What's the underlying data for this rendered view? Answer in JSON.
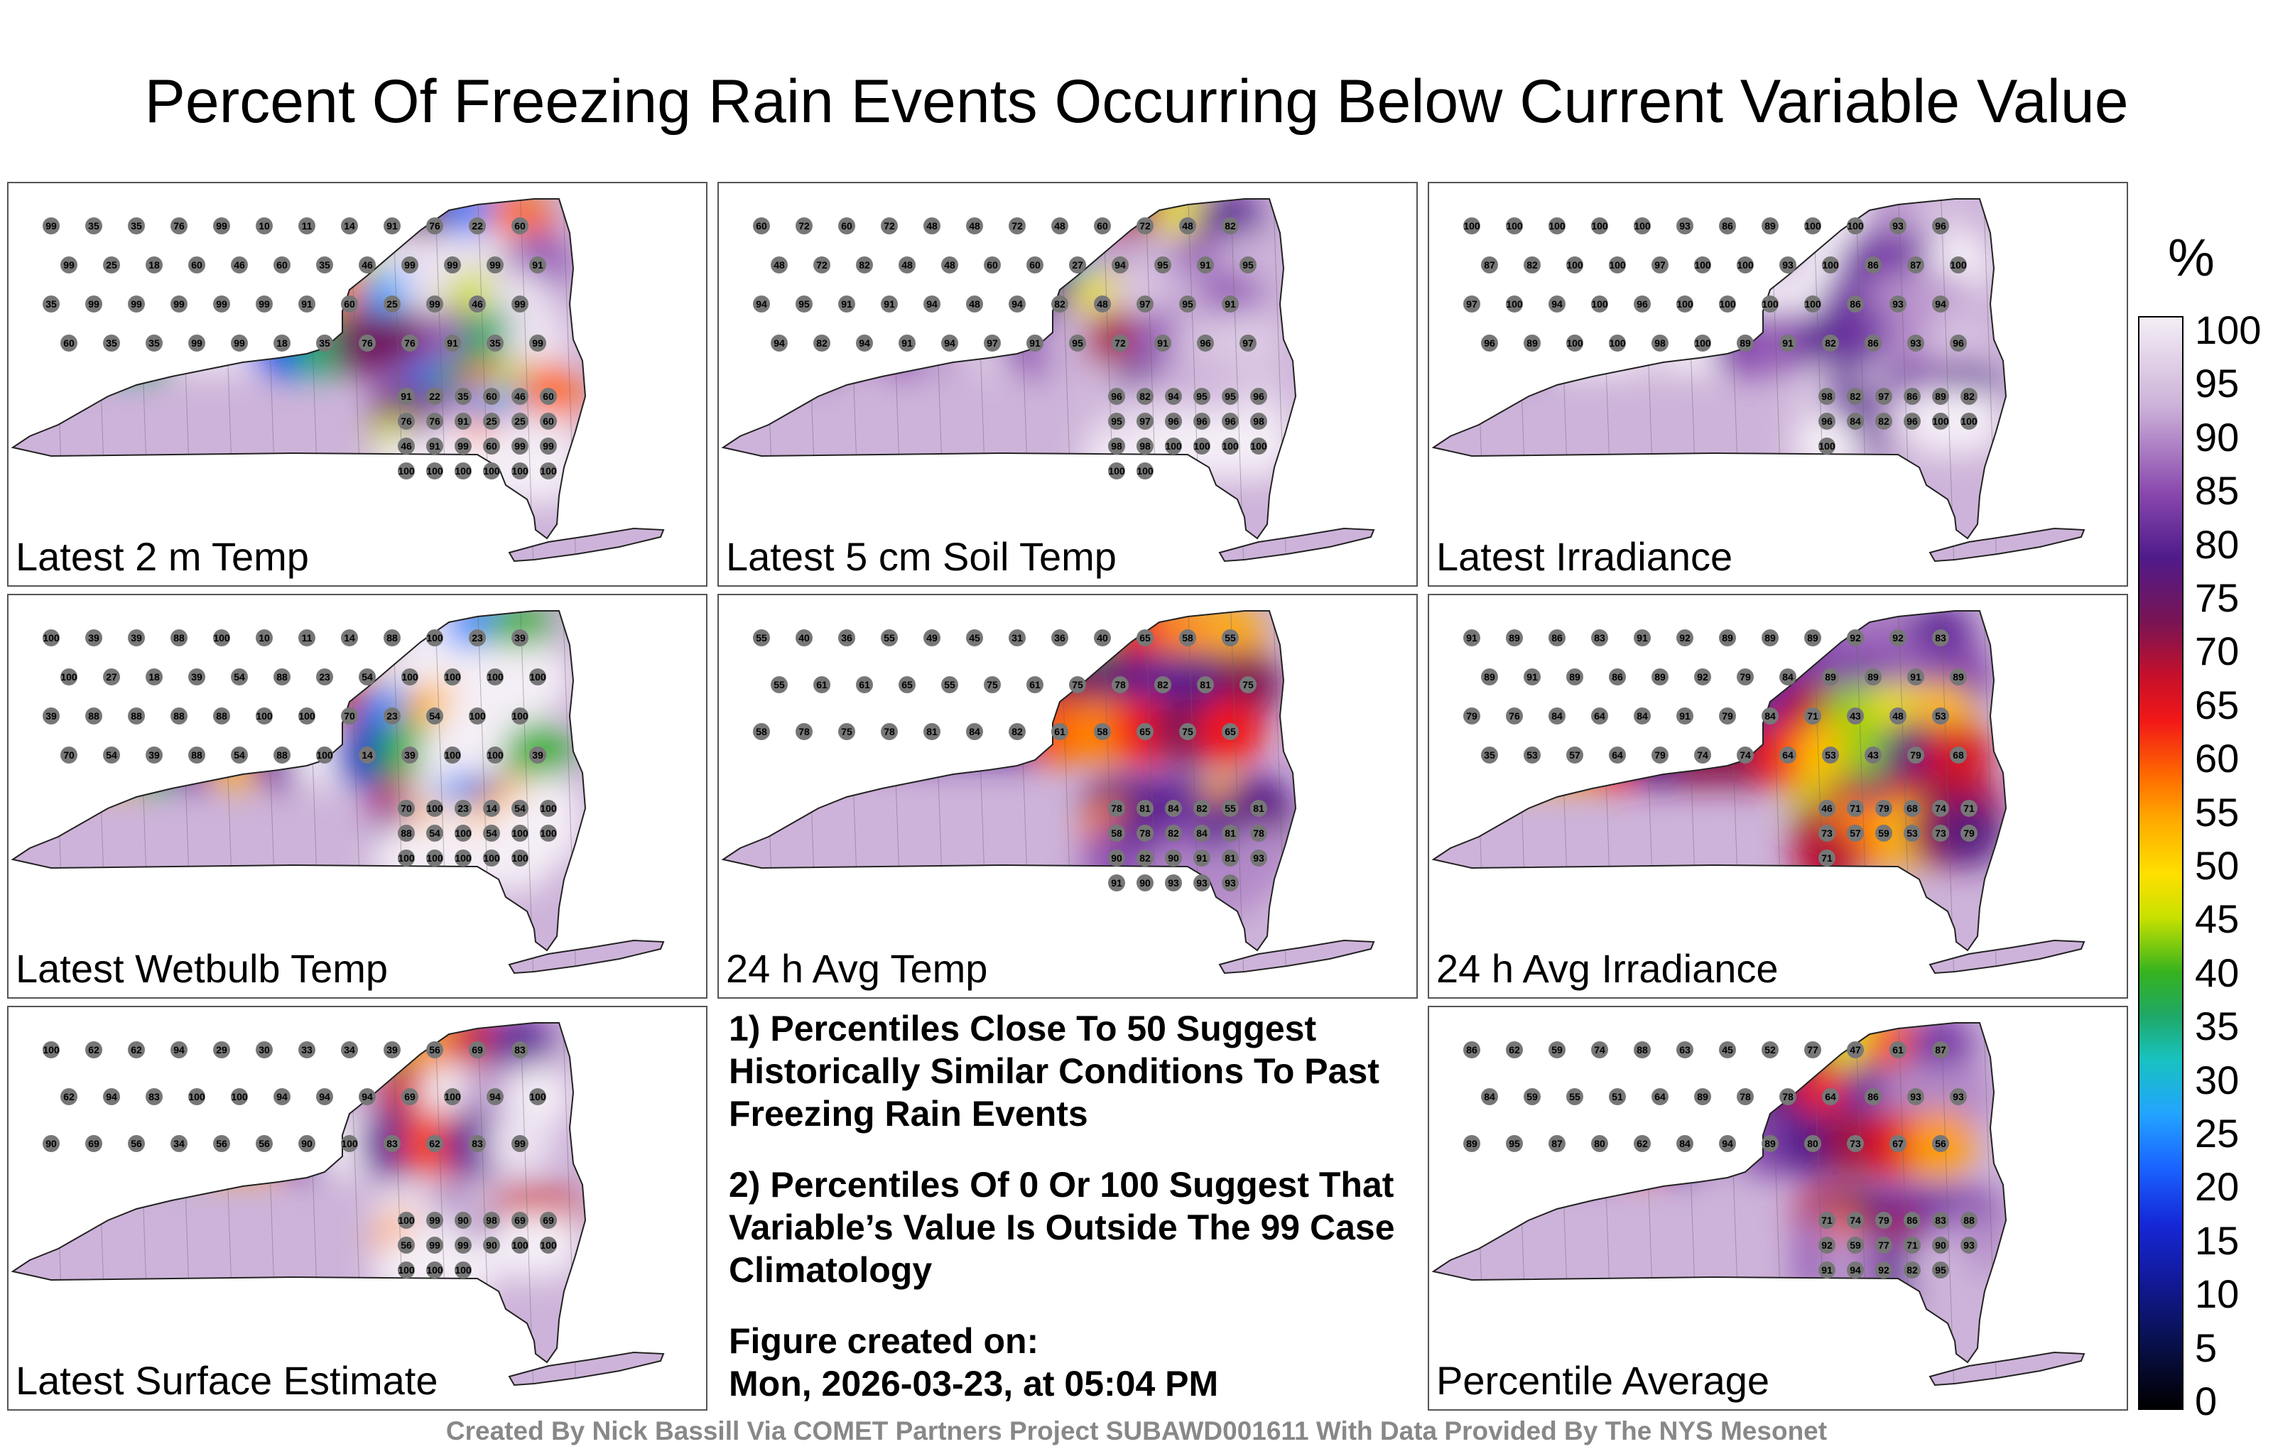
{
  "title": "Percent Of Freezing Rain Events Occurring Below Current Variable Value",
  "colors": {
    "panel_border": "#555555",
    "station_dot": "#777777",
    "county_line": "#666666"
  },
  "panels": [
    {
      "label": "Latest 2 m Temp",
      "stations": [
        "99",
        "35",
        "35",
        "76",
        "99",
        "10",
        "11",
        "14",
        "91",
        "76",
        "22",
        "60",
        "99",
        "25",
        "18",
        "60",
        "46",
        "60",
        "35",
        "46",
        "99",
        "99",
        "99",
        "91",
        "35",
        "99",
        "99",
        "99",
        "99",
        "99",
        "91",
        "60",
        "25",
        "99",
        "46",
        "99",
        "60",
        "35",
        "35",
        "99",
        "99",
        "18",
        "35",
        "76",
        "76",
        "91",
        "35",
        "99",
        "91",
        "22",
        "35",
        "60",
        "46",
        "60",
        "76",
        "76",
        "91",
        "25",
        "25",
        "60",
        "46",
        "91",
        "99",
        "60",
        "99",
        "99",
        "100",
        "100",
        "100",
        "100",
        "100",
        "100"
      ]
    },
    {
      "label": "Latest 5 cm Soil Temp",
      "stations": [
        "60",
        "72",
        "60",
        "72",
        "48",
        "48",
        "72",
        "48",
        "60",
        "72",
        "48",
        "82",
        "48",
        "72",
        "82",
        "48",
        "48",
        "60",
        "60",
        "27",
        "94",
        "95",
        "91",
        "95",
        "94",
        "95",
        "91",
        "91",
        "94",
        "48",
        "94",
        "82",
        "48",
        "97",
        "95",
        "91",
        "94",
        "82",
        "94",
        "91",
        "94",
        "97",
        "91",
        "95",
        "72",
        "91",
        "96",
        "97",
        "96",
        "82",
        "94",
        "95",
        "95",
        "96",
        "95",
        "97",
        "96",
        "96",
        "96",
        "98",
        "98",
        "98",
        "100",
        "100",
        "100",
        "100",
        "100",
        "100"
      ]
    },
    {
      "label": "Latest Irradiance",
      "stations": [
        "100",
        "100",
        "100",
        "100",
        "100",
        "93",
        "86",
        "89",
        "100",
        "100",
        "93",
        "96",
        "87",
        "82",
        "100",
        "100",
        "97",
        "100",
        "100",
        "93",
        "100",
        "86",
        "87",
        "100",
        "97",
        "100",
        "94",
        "100",
        "96",
        "100",
        "100",
        "100",
        "100",
        "86",
        "93",
        "94",
        "96",
        "89",
        "100",
        "100",
        "98",
        "100",
        "89",
        "91",
        "82",
        "86",
        "93",
        "96",
        "98",
        "82",
        "97",
        "86",
        "89",
        "82",
        "96",
        "84",
        "82",
        "96",
        "100",
        "100",
        "100"
      ]
    },
    {
      "label": "Latest Wetbulb Temp",
      "stations": [
        "100",
        "39",
        "39",
        "88",
        "100",
        "10",
        "11",
        "14",
        "88",
        "100",
        "23",
        "39",
        "100",
        "27",
        "18",
        "39",
        "54",
        "88",
        "23",
        "54",
        "100",
        "100",
        "100",
        "100",
        "39",
        "88",
        "88",
        "88",
        "88",
        "100",
        "100",
        "70",
        "23",
        "54",
        "100",
        "100",
        "70",
        "54",
        "39",
        "88",
        "54",
        "88",
        "100",
        "14",
        "39",
        "100",
        "100",
        "39",
        "70",
        "100",
        "23",
        "14",
        "54",
        "100",
        "88",
        "54",
        "100",
        "54",
        "100",
        "100",
        "100",
        "100",
        "100",
        "100",
        "100"
      ]
    },
    {
      "label": "24 h Avg Temp",
      "stations": [
        "55",
        "40",
        "36",
        "55",
        "49",
        "45",
        "31",
        "36",
        "40",
        "65",
        "58",
        "55",
        "55",
        "61",
        "61",
        "65",
        "55",
        "75",
        "61",
        "75",
        "78",
        "82",
        "81",
        "75",
        "58",
        "78",
        "75",
        "78",
        "81",
        "84",
        "82",
        "61",
        "58",
        "65",
        "75",
        "65",
        "78",
        "81",
        "84",
        "82",
        "55",
        "81",
        "58",
        "78",
        "82",
        "84",
        "81",
        "78",
        "90",
        "82",
        "90",
        "91",
        "81",
        "93",
        "91",
        "90",
        "93",
        "93",
        "93"
      ]
    },
    {
      "label": "24 h Avg Irradiance",
      "stations": [
        "91",
        "89",
        "86",
        "83",
        "91",
        "92",
        "89",
        "89",
        "89",
        "92",
        "92",
        "83",
        "89",
        "91",
        "89",
        "86",
        "89",
        "92",
        "79",
        "84",
        "89",
        "89",
        "91",
        "89",
        "79",
        "76",
        "84",
        "64",
        "84",
        "91",
        "79",
        "84",
        "71",
        "43",
        "48",
        "53",
        "35",
        "53",
        "57",
        "64",
        "79",
        "74",
        "74",
        "64",
        "53",
        "43",
        "79",
        "68",
        "46",
        "71",
        "79",
        "68",
        "74",
        "71",
        "73",
        "57",
        "59",
        "53",
        "73",
        "79",
        "71"
      ]
    },
    {
      "label": "Latest Surface Estimate",
      "stations": [
        "100",
        "62",
        "62",
        "94",
        "29",
        "30",
        "33",
        "34",
        "39",
        "56",
        "69",
        "83",
        "62",
        "94",
        "83",
        "100",
        "100",
        "94",
        "94",
        "94",
        "69",
        "100",
        "94",
        "100",
        "90",
        "69",
        "56",
        "34",
        "56",
        "56",
        "90",
        "100",
        "83",
        "62",
        "83",
        "99",
        "100",
        "99",
        "90",
        "98",
        "69",
        "69",
        "56",
        "99",
        "99",
        "90",
        "100",
        "100",
        "100",
        "100",
        "100"
      ]
    },
    {
      "label": "Percentile Average",
      "stations": [
        "86",
        "62",
        "59",
        "74",
        "88",
        "63",
        "45",
        "52",
        "77",
        "47",
        "61",
        "87",
        "84",
        "59",
        "55",
        "51",
        "64",
        "89",
        "78",
        "78",
        "64",
        "86",
        "93",
        "93",
        "89",
        "95",
        "87",
        "80",
        "62",
        "84",
        "94",
        "89",
        "80",
        "73",
        "67",
        "56",
        "71",
        "74",
        "79",
        "86",
        "83",
        "88",
        "92",
        "59",
        "77",
        "71",
        "90",
        "93",
        "91",
        "94",
        "92",
        "82",
        "95"
      ]
    }
  ],
  "notes": {
    "note1": "1) Percentiles Close To 50 Suggest Historically Similar Conditions To Past Freezing Rain Events",
    "note2": "2) Percentiles Of 0 Or 100 Suggest That Variable’s Value Is Outside The 99 Case Climatology",
    "created_label": "Figure created on:",
    "created_value": "Mon, 2026-03-23, at 05:04 PM"
  },
  "colorbar": {
    "unit": "%",
    "ticks": [
      "100",
      "95",
      "90",
      "85",
      "80",
      "75",
      "70",
      "65",
      "60",
      "55",
      "50",
      "45",
      "40",
      "35",
      "30",
      "25",
      "20",
      "15",
      "10",
      "5",
      "0"
    ]
  },
  "footer": "Created By Nick Bassill Via COMET Partners Project SUBAWD001611 With Data Provided By The NYS Mesonet"
}
